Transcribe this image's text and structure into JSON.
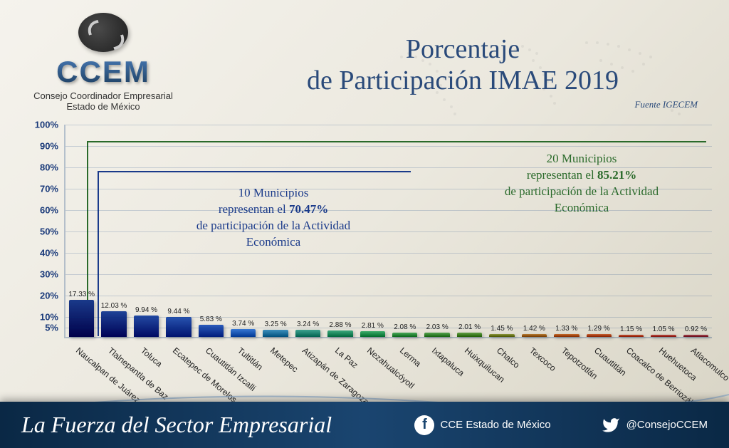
{
  "logo": {
    "text": "CCEM",
    "sub1": "Consejo Coordinador Empresarial",
    "sub2": "Estado de México"
  },
  "title": {
    "line1": "Porcentaje",
    "line2": "de Participación IMAE 2019",
    "source": "Fuente IGECEM",
    "title_fontsize": 38,
    "color": "#2a4a7a"
  },
  "chart": {
    "type": "bar",
    "ylim": [
      0,
      100
    ],
    "yticks": [
      5,
      10,
      20,
      30,
      40,
      50,
      60,
      70,
      80,
      90,
      100
    ],
    "ytick_suffix": "%",
    "grid_color": "rgba(0,50,120,0.18)",
    "axis_color": "rgba(0,50,120,0.25)",
    "label_fontsize": 10,
    "xlabel_fontsize": 12,
    "xlabel_rotation": 40,
    "bar_width": 0.78,
    "background_color": "transparent",
    "bars": [
      {
        "name": "Naucalpan de Juárez",
        "value": 17.33,
        "label": "17.33 %",
        "color": "#1a3a8a"
      },
      {
        "name": "Tlalnepantla de Baz",
        "value": 12.03,
        "label": "12.03 %",
        "color": "#1e4296"
      },
      {
        "name": "Toluca",
        "value": 9.94,
        "label": "9.94 %",
        "color": "#234aa3"
      },
      {
        "name": "Ecatepec de Morelos",
        "value": 9.44,
        "label": "9.44 %",
        "color": "#2753af"
      },
      {
        "name": "Cuautitlán Izcalli",
        "value": 5.83,
        "label": "5.83 %",
        "color": "#2c5cbc"
      },
      {
        "name": "Tultitlán",
        "value": 3.74,
        "label": "3.74 %",
        "color": "#3878d4"
      },
      {
        "name": "Metepec",
        "value": 3.25,
        "label": "3.25 %",
        "color": "#3e90bd"
      },
      {
        "name": "Atizapán de Zaragoza",
        "value": 3.24,
        "label": "3.24 %",
        "color": "#3da290"
      },
      {
        "name": "La Paz",
        "value": 2.88,
        "label": "2.88 %",
        "color": "#3ca87d"
      },
      {
        "name": "Nezahualcóyotl",
        "value": 2.81,
        "label": "2.81 %",
        "color": "#3cac6b"
      },
      {
        "name": "Lerma",
        "value": 2.08,
        "label": "2.08 %",
        "color": "#4aa85a"
      },
      {
        "name": "Ixtapaluca",
        "value": 2.03,
        "label": "2.03 %",
        "color": "#55a34f"
      },
      {
        "name": "Huixquilucan",
        "value": 2.01,
        "label": "2.01 %",
        "color": "#609e44"
      },
      {
        "name": "Chalco",
        "value": 1.45,
        "label": "1.45 %",
        "color": "#8a953a"
      },
      {
        "name": "Texcoco",
        "value": 1.42,
        "label": "1.42 %",
        "color": "#b57a30"
      },
      {
        "name": "Tepotzotlán",
        "value": 1.33,
        "label": "1.33 %",
        "color": "#c46a28"
      },
      {
        "name": "Cuautitlán",
        "value": 1.29,
        "label": "1.29 %",
        "color": "#c76030"
      },
      {
        "name": "Coacalco de Berriozábal",
        "value": 1.15,
        "label": "1.15 %",
        "color": "#c85838"
      },
      {
        "name": "Huehuetoca",
        "value": 1.05,
        "label": "1.05 %",
        "color": "#c05048"
      },
      {
        "name": "Atlacomulco",
        "value": 0.92,
        "label": "0.92 %",
        "color": "#a84a56"
      }
    ],
    "callouts": [
      {
        "count": 10,
        "text_prefix": "10 Municipios",
        "text_mid": "representan el ",
        "pct": "70.47%",
        "text_suffix": "de participación de la Actividad Económica",
        "border_color": "#1a3a8a",
        "text_color": "#1a3a8a"
      },
      {
        "count": 20,
        "text_prefix": "20 Municipios",
        "text_mid": "representan el ",
        "pct": "85.21%",
        "text_suffix": "de participación de la Actividad Económica",
        "border_color": "#2a6a2a",
        "text_color": "#2a6a2a"
      }
    ]
  },
  "footer": {
    "tagline": "La Fuerza del Sector Empresarial",
    "facebook": "CCE Estado de México",
    "twitter": "@ConsejoCCEM",
    "background": "linear-gradient(90deg, #0a2845 0%, #1a4570 50%, #0a2845 100%)"
  }
}
